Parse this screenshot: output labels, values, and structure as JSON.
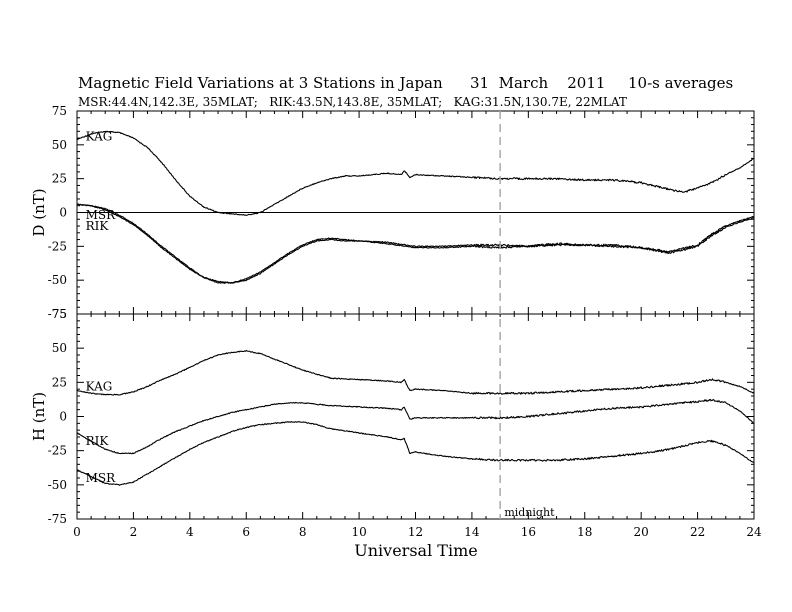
{
  "title": "Magnetic Field Variations at 3 Stations in Japan",
  "date": "31  March    2011",
  "averaging": "10-s averages",
  "subtitle": "MSR:44.4N,142.3E, 35MLAT;   RIK:43.5N,143.8E, 35MLAT;   KAG:31.5N,130.7E, 22MLAT",
  "chart_data": [
    {
      "type": "line",
      "panel": "D",
      "ylabel": "D (nT)",
      "xlim": [
        0,
        24
      ],
      "ylim": [
        -75,
        75
      ],
      "yticks": [
        75,
        50,
        25,
        0,
        -25,
        -50,
        -75
      ],
      "zero_line": true,
      "series": [
        {
          "name": "KAG",
          "x": [
            0,
            0.5,
            1,
            1.5,
            2,
            2.5,
            3,
            3.5,
            4,
            4.5,
            5,
            5.5,
            6,
            6.5,
            7,
            7.5,
            8,
            8.5,
            9,
            9.5,
            10,
            10.5,
            11,
            11.5,
            11.6,
            11.8,
            12,
            13,
            14,
            15,
            16,
            17,
            18,
            19,
            20,
            21,
            21.5,
            22,
            22.5,
            23,
            23.5,
            24
          ],
          "y": [
            54,
            58,
            60,
            59,
            55,
            48,
            37,
            24,
            12,
            4,
            0,
            -1,
            -2,
            0,
            6,
            12,
            18,
            22,
            25,
            27,
            27,
            28,
            29,
            28,
            31,
            26,
            28,
            27,
            26,
            25,
            25,
            25,
            24,
            24,
            22,
            17,
            15,
            18,
            22,
            28,
            33,
            40
          ]
        },
        {
          "name": "MSR",
          "x": [
            0,
            0.5,
            1,
            1.5,
            2,
            2.5,
            3,
            3.5,
            4,
            4.5,
            5,
            5.5,
            6,
            6.5,
            7,
            7.5,
            8,
            8.5,
            9,
            9.5,
            10,
            11,
            12,
            13,
            14,
            15,
            16,
            17,
            18,
            19,
            20,
            21,
            22,
            22.5,
            23,
            23.5,
            24
          ],
          "y": [
            6,
            5,
            3,
            -2,
            -8,
            -16,
            -25,
            -33,
            -41,
            -48,
            -51,
            -52,
            -49,
            -44,
            -37,
            -30,
            -24,
            -20,
            -19,
            -20,
            -21,
            -22,
            -25,
            -25,
            -24,
            -24,
            -25,
            -23,
            -24,
            -24,
            -26,
            -29,
            -24,
            -16,
            -10,
            -6,
            -3
          ]
        },
        {
          "name": "RIK",
          "x": [
            0,
            0.5,
            1,
            1.5,
            2,
            2.5,
            3,
            3.5,
            4,
            4.5,
            5,
            5.5,
            6,
            6.5,
            7,
            7.5,
            8,
            8.5,
            9,
            9.5,
            10,
            11,
            12,
            13,
            14,
            15,
            16,
            17,
            18,
            19,
            20,
            21,
            22,
            22.5,
            23,
            23.5,
            24
          ],
          "y": [
            6,
            5,
            2,
            -3,
            -9,
            -17,
            -26,
            -34,
            -42,
            -48,
            -52,
            -52,
            -50,
            -45,
            -38,
            -31,
            -25,
            -21,
            -20,
            -21,
            -21,
            -23,
            -26,
            -26,
            -25,
            -26,
            -25,
            -24,
            -24,
            -25,
            -26,
            -30,
            -25,
            -17,
            -11,
            -7,
            -4
          ]
        }
      ],
      "series_labels": [
        {
          "text": "KAG",
          "x": 0.2,
          "y": 56
        },
        {
          "text": "MSR",
          "x": 0.2,
          "y": -2
        },
        {
          "text": "RIK",
          "x": 0.2,
          "y": -10
        }
      ]
    },
    {
      "type": "line",
      "panel": "H",
      "ylabel": "H (nT)",
      "xlabel": "Universal Time",
      "xlim": [
        0,
        24
      ],
      "ylim": [
        -75,
        75
      ],
      "xticks": [
        0,
        2,
        4,
        6,
        8,
        10,
        12,
        14,
        16,
        18,
        20,
        22,
        24
      ],
      "yticks": [
        75,
        50,
        25,
        0,
        -25,
        -50,
        -75
      ],
      "series": [
        {
          "name": "KAG",
          "x": [
            0,
            0.5,
            1,
            1.5,
            2,
            2.5,
            3,
            3.5,
            4,
            4.5,
            5,
            5.5,
            6,
            6.5,
            7,
            7.5,
            8,
            8.5,
            9,
            10,
            11,
            11.5,
            11.6,
            11.8,
            12,
            13,
            14,
            15,
            16,
            17,
            18,
            19,
            20,
            21,
            22,
            22.5,
            23,
            23.5,
            24
          ],
          "y": [
            19,
            17,
            16,
            16,
            18,
            22,
            27,
            31,
            36,
            41,
            45,
            47,
            48,
            46,
            42,
            38,
            34,
            31,
            28,
            27,
            26,
            25,
            27,
            19,
            20,
            19,
            17,
            17,
            17,
            18,
            19,
            20,
            21,
            23,
            25,
            27,
            25,
            22,
            17
          ]
        },
        {
          "name": "RIK",
          "x": [
            0,
            0.5,
            1,
            1.5,
            2,
            2.5,
            3,
            3.5,
            4,
            4.5,
            5,
            5.5,
            6,
            6.5,
            7,
            7.5,
            8,
            8.5,
            9,
            10,
            11,
            11.5,
            11.6,
            11.8,
            12,
            13,
            14,
            15,
            16,
            17,
            18,
            19,
            20,
            21,
            22,
            22.5,
            23,
            23.5,
            24
          ],
          "y": [
            -12,
            -18,
            -24,
            -27,
            -27,
            -22,
            -16,
            -11,
            -7,
            -3,
            0,
            3,
            5,
            7,
            9,
            10,
            10,
            9,
            8,
            7,
            6,
            5,
            7,
            -2,
            -1,
            -1,
            -1,
            -1,
            0,
            2,
            4,
            6,
            7,
            9,
            11,
            12,
            10,
            4,
            -5
          ]
        },
        {
          "name": "MSR",
          "x": [
            0,
            0.5,
            1,
            1.5,
            2,
            2.5,
            3,
            3.5,
            4,
            4.5,
            5,
            5.5,
            6,
            6.5,
            7,
            7.5,
            8,
            8.5,
            9,
            10,
            11,
            11.5,
            11.6,
            11.8,
            12,
            13,
            14,
            15,
            16,
            17,
            18,
            19,
            20,
            21,
            22,
            22.5,
            23,
            23.5,
            24
          ],
          "y": [
            -39,
            -44,
            -49,
            -50,
            -48,
            -42,
            -36,
            -30,
            -24,
            -19,
            -15,
            -11,
            -8,
            -6,
            -5,
            -4,
            -4,
            -6,
            -9,
            -12,
            -15,
            -17,
            -16,
            -27,
            -26,
            -29,
            -31,
            -32,
            -32,
            -32,
            -31,
            -29,
            -27,
            -24,
            -19,
            -18,
            -21,
            -27,
            -34
          ]
        }
      ],
      "series_labels": [
        {
          "text": "KAG",
          "x": 0.2,
          "y": 22
        },
        {
          "text": "RIK",
          "x": 0.2,
          "y": -18
        },
        {
          "text": "MSR",
          "x": 0.2,
          "y": -45
        }
      ],
      "annotations": [
        {
          "text": "midnight",
          "x": 15.15,
          "y": -70,
          "dashed_vertical_line_at_x": 15
        }
      ]
    }
  ]
}
